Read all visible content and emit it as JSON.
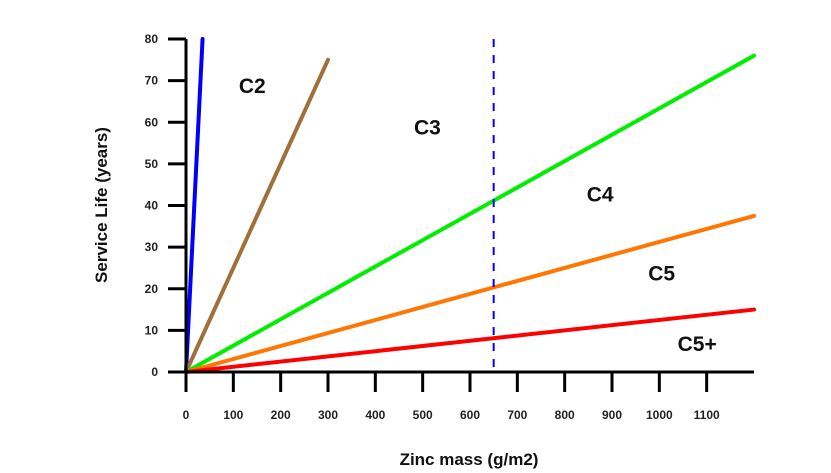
{
  "chart_data": {
    "type": "line",
    "title": "",
    "xlabel": "Zinc mass (g/m2)",
    "ylabel": "Service Life (years)",
    "xlim": [
      0,
      1200
    ],
    "ylim": [
      0,
      80
    ],
    "x_ticks": [
      0,
      100,
      200,
      300,
      400,
      500,
      600,
      700,
      800,
      900,
      1000,
      1100
    ],
    "y_ticks": [
      0,
      10,
      20,
      30,
      40,
      50,
      60,
      70,
      80
    ],
    "grid": false,
    "series": [
      {
        "color": "#0000ff",
        "points": [
          [
            0,
            0
          ],
          [
            35,
            80
          ]
        ]
      },
      {
        "color": "#a0703c",
        "points": [
          [
            0,
            0
          ],
          [
            300,
            75
          ]
        ]
      },
      {
        "color": "#00ee00",
        "points": [
          [
            0,
            0
          ],
          [
            1200,
            76
          ]
        ]
      },
      {
        "color": "#ff7700",
        "points": [
          [
            0,
            0
          ],
          [
            1200,
            37.5
          ]
        ]
      },
      {
        "color": "#ff0000",
        "points": [
          [
            0,
            0
          ],
          [
            1200,
            15
          ]
        ]
      }
    ],
    "reference_line": {
      "x": 650,
      "color": "#0000ff",
      "style": "dashed"
    },
    "region_labels": [
      {
        "text": "C2",
        "x": 140,
        "y": 67
      },
      {
        "text": "C3",
        "x": 510,
        "y": 57
      },
      {
        "text": "C4",
        "x": 875,
        "y": 41
      },
      {
        "text": "C5",
        "x": 1005,
        "y": 22
      },
      {
        "text": "C5+",
        "x": 1080,
        "y": 5
      }
    ]
  }
}
